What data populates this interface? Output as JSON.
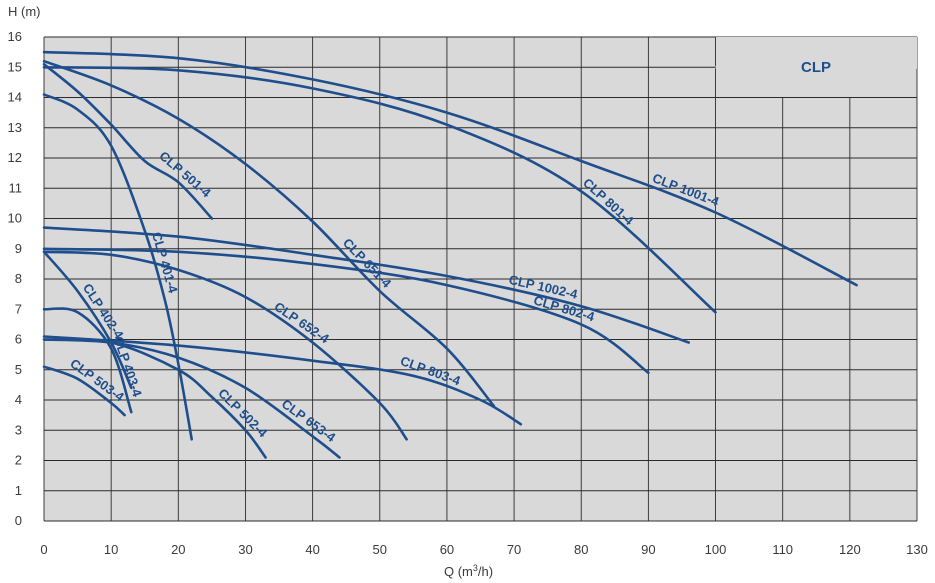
{
  "chart_data": {
    "type": "line",
    "title": "CLP",
    "xlabel": "Q (m",
    "xlabel_sup": "3",
    "xlabel_tail": "/h)",
    "ylabel": "H (m)",
    "xlim": [
      0,
      130
    ],
    "ylim": [
      0,
      16
    ],
    "xticks": [
      0,
      10,
      20,
      30,
      40,
      50,
      60,
      70,
      80,
      90,
      100,
      110,
      120,
      130
    ],
    "yticks": [
      0,
      1,
      2,
      3,
      4,
      5,
      6,
      7,
      8,
      9,
      10,
      11,
      12,
      13,
      14,
      15,
      16
    ],
    "grid": true,
    "colors": {
      "curve": "#1f4e8c",
      "plot_bg": "#d9d9d9",
      "grid": "#2b2b2b",
      "axis_text": "#3a3a3a"
    },
    "series": [
      {
        "name": "CLP 1001-4",
        "x": [
          0,
          20,
          40,
          60,
          80,
          100,
          121
        ],
        "y": [
          15.5,
          15.3,
          14.6,
          13.5,
          11.9,
          10.2,
          7.8
        ]
      },
      {
        "name": "CLP 801-4",
        "x": [
          0,
          20,
          40,
          60,
          80,
          100
        ],
        "y": [
          15.0,
          14.9,
          14.3,
          13.1,
          10.9,
          6.9
        ]
      },
      {
        "name": "CLP 651-4",
        "x": [
          0,
          10,
          20,
          30,
          40,
          50,
          60,
          67
        ],
        "y": [
          15.2,
          14.4,
          13.3,
          11.8,
          9.9,
          7.6,
          5.7,
          3.8
        ]
      },
      {
        "name": "CLP 501-4",
        "x": [
          0,
          5,
          10,
          15,
          20,
          25
        ],
        "y": [
          15.1,
          14.2,
          13.1,
          11.9,
          11.2,
          10.0
        ]
      },
      {
        "name": "CLP 401-4",
        "x": [
          0,
          5,
          10,
          15,
          18,
          20,
          22
        ],
        "y": [
          14.1,
          13.6,
          12.4,
          9.6,
          7.3,
          5.2,
          2.7
        ]
      },
      {
        "name": "CLP 1002-4",
        "x": [
          0,
          20,
          40,
          60,
          80,
          96
        ],
        "y": [
          9.7,
          9.4,
          8.8,
          8.1,
          7.1,
          5.9
        ]
      },
      {
        "name": "CLP 802-4",
        "x": [
          0,
          20,
          40,
          60,
          80,
          90
        ],
        "y": [
          9.0,
          8.9,
          8.5,
          7.8,
          6.5,
          4.9
        ]
      },
      {
        "name": "CLP 652-4",
        "x": [
          0,
          10,
          20,
          30,
          40,
          50,
          54
        ],
        "y": [
          8.9,
          8.8,
          8.3,
          7.4,
          5.9,
          3.9,
          2.7
        ]
      },
      {
        "name": "CLP 402-4",
        "x": [
          0,
          5,
          10,
          13
        ],
        "y": [
          8.9,
          7.6,
          5.9,
          4.4
        ]
      },
      {
        "name": "CLP 803-4",
        "x": [
          0,
          20,
          40,
          55,
          65,
          71
        ],
        "y": [
          6.1,
          5.8,
          5.3,
          4.8,
          4.0,
          3.2
        ]
      },
      {
        "name": "CLP 653-4",
        "x": [
          0,
          10,
          20,
          30,
          40,
          44
        ],
        "y": [
          6.0,
          5.9,
          5.4,
          4.4,
          2.8,
          2.1
        ]
      },
      {
        "name": "CLP 502-4",
        "x": [
          0,
          10,
          20,
          25,
          30,
          33
        ],
        "y": [
          6.0,
          5.9,
          5.0,
          4.1,
          3.0,
          2.1
        ]
      },
      {
        "name": "CLP 403-4",
        "x": [
          0,
          5,
          10,
          13
        ],
        "y": [
          7.0,
          6.9,
          5.7,
          3.6
        ]
      },
      {
        "name": "CLP 503-4",
        "x": [
          0,
          5,
          10,
          12
        ],
        "y": [
          5.1,
          4.7,
          3.9,
          3.5
        ]
      }
    ]
  }
}
